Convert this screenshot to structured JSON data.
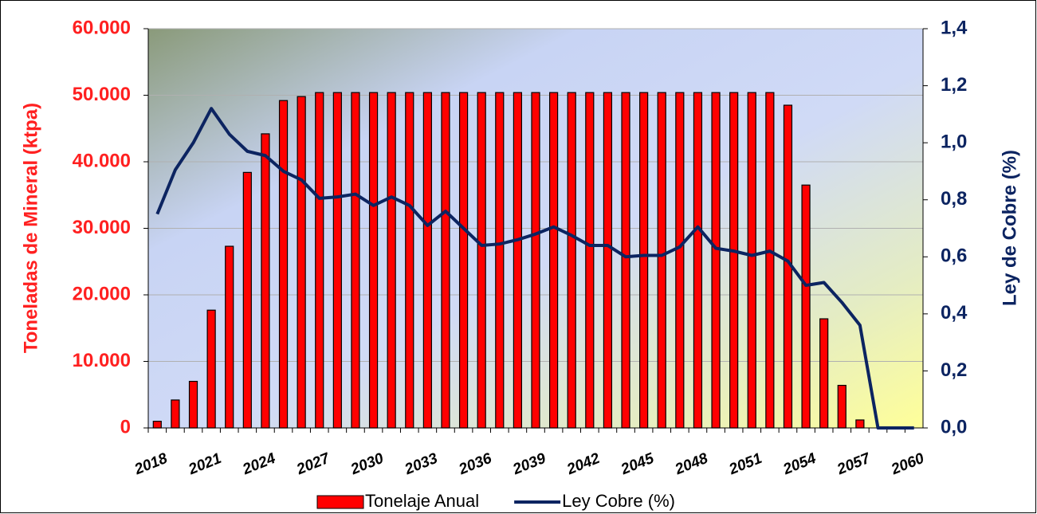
{
  "chart_data": {
    "type": "bar",
    "y_label": "Toneladas de Mineral (ktpa)",
    "y2_label": "Ley de Cobre (%)",
    "categories": [
      "2018",
      null,
      null,
      "2021",
      null,
      null,
      "2024",
      null,
      null,
      "2027",
      null,
      null,
      "2030",
      null,
      null,
      "2033",
      null,
      null,
      "2036",
      null,
      null,
      "2039",
      null,
      null,
      "2042",
      null,
      null,
      "2045",
      null,
      null,
      "2048",
      null,
      null,
      "2051",
      null,
      null,
      "2054",
      null,
      null,
      "2057",
      null,
      null,
      "2060"
    ],
    "series": [
      {
        "name": "Tonelaje Anual",
        "type": "bar",
        "color": "#ff0000",
        "values": [
          1000,
          4200,
          7000,
          17700,
          27300,
          38400,
          44200,
          49200,
          49800,
          50400,
          50400,
          50400,
          50400,
          50400,
          50400,
          50400,
          50400,
          50400,
          50400,
          50400,
          50400,
          50400,
          50400,
          50400,
          50400,
          50400,
          50400,
          50400,
          50400,
          50400,
          50400,
          50400,
          50400,
          50400,
          50400,
          48500,
          36500,
          16400,
          6400,
          1200,
          0,
          0,
          0
        ]
      },
      {
        "name": "Ley Cobre (%)",
        "type": "line",
        "axis": "y2",
        "color": "#0c2461",
        "values": [
          0.75,
          0.905,
          1.0,
          1.12,
          1.03,
          0.97,
          0.955,
          0.9,
          0.87,
          0.805,
          0.81,
          0.82,
          0.78,
          0.81,
          0.78,
          0.71,
          0.76,
          0.7,
          0.64,
          0.645,
          0.66,
          0.68,
          0.705,
          0.675,
          0.64,
          0.64,
          0.6,
          0.605,
          0.605,
          0.635,
          0.705,
          0.63,
          0.62,
          0.605,
          0.62,
          0.585,
          0.5,
          0.51,
          0.44,
          0.36,
          0,
          0,
          0
        ]
      }
    ],
    "ylim": [
      0,
      60000
    ],
    "yticks": [
      {
        "value": 0,
        "label": "0"
      },
      {
        "value": 10000,
        "label": "10.000"
      },
      {
        "value": 20000,
        "label": "20.000"
      },
      {
        "value": 30000,
        "label": "30.000"
      },
      {
        "value": 40000,
        "label": "40.000"
      },
      {
        "value": 50000,
        "label": "50.000"
      },
      {
        "value": 60000,
        "label": "60.000"
      }
    ],
    "y2lim": [
      0,
      1.4
    ],
    "y2ticks": [
      {
        "value": 0,
        "label": "0,0"
      },
      {
        "value": 0.2,
        "label": "0,2"
      },
      {
        "value": 0.4,
        "label": "0,4"
      },
      {
        "value": 0.6,
        "label": "0,6"
      },
      {
        "value": 0.8,
        "label": "0,8"
      },
      {
        "value": 1.0,
        "label": "1,0"
      },
      {
        "value": 1.2,
        "label": "1,2"
      },
      {
        "value": 1.4,
        "label": "1,4"
      }
    ],
    "grid": true,
    "legend": "bottom"
  }
}
